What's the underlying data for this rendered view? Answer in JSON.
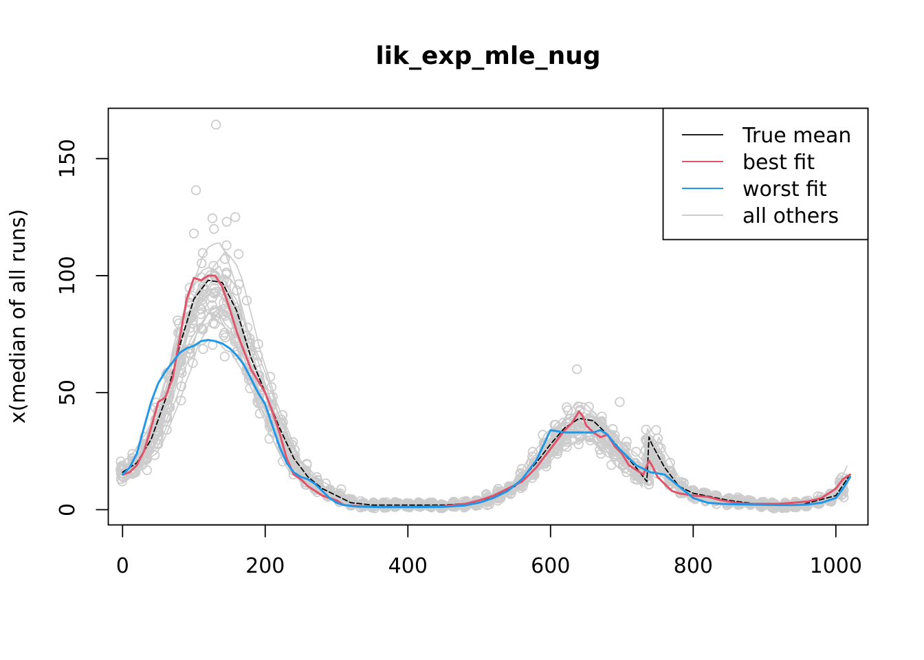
{
  "chart_data": {
    "type": "line",
    "title": "lik_exp_mle_nug",
    "xlabel": "",
    "ylabel": "x(median of all runs)",
    "xlim": [
      -20,
      1045
    ],
    "ylim": [
      -6.5,
      171.5
    ],
    "x_ticks": [
      0,
      200,
      400,
      600,
      800,
      1000
    ],
    "y_ticks": [
      0,
      50,
      100,
      150
    ],
    "legend": {
      "position": "top-right",
      "entries": [
        {
          "label": "True mean",
          "color": "#000000"
        },
        {
          "label": "best fit",
          "color": "#DF536B"
        },
        {
          "label": "worst fit",
          "color": "#2297E6"
        },
        {
          "label": "all others",
          "color": "#CCCCCC"
        }
      ]
    },
    "series": [
      {
        "name": "True mean",
        "color": "#000000",
        "style": "dashed",
        "x": [
          0,
          20,
          40,
          60,
          80,
          100,
          120,
          140,
          160,
          180,
          200,
          220,
          240,
          260,
          280,
          300,
          320,
          350,
          400,
          450,
          500,
          550,
          580,
          600,
          620,
          640,
          660,
          680,
          700,
          720,
          735,
          738,
          742,
          760,
          780,
          800,
          850,
          900,
          950,
          1000,
          1020
        ],
        "y": [
          16,
          20,
          30,
          47,
          70,
          90,
          98,
          97,
          85,
          65,
          50,
          35,
          22,
          14,
          9,
          6,
          3,
          2,
          2,
          2,
          3,
          10,
          20,
          28,
          35,
          39,
          38,
          32,
          25,
          18,
          12,
          31,
          28,
          18,
          10,
          7,
          4,
          2,
          2,
          6,
          15
        ]
      },
      {
        "name": "best fit",
        "color": "#DF536B",
        "style": "solid",
        "x": [
          0,
          10,
          20,
          30,
          40,
          50,
          60,
          70,
          80,
          90,
          100,
          110,
          120,
          130,
          140,
          150,
          160,
          170,
          180,
          190,
          200,
          210,
          220,
          230,
          240,
          250,
          260,
          270,
          280,
          290,
          300,
          310,
          330,
          360,
          400,
          450,
          480,
          500,
          520,
          540,
          560,
          580,
          600,
          610,
          620,
          630,
          640,
          645,
          650,
          660,
          670,
          680,
          690,
          700,
          710,
          720,
          730,
          738,
          742,
          750,
          760,
          770,
          780,
          790,
          800,
          820,
          840,
          860,
          880,
          900,
          920,
          940,
          960,
          980,
          1000,
          1010,
          1020
        ],
        "y": [
          15,
          16,
          19,
          25,
          35,
          46,
          48,
          56,
          73,
          90,
          99,
          98,
          100,
          100,
          95,
          86,
          76,
          68,
          60,
          55,
          50,
          42,
          33,
          22,
          15,
          13,
          10,
          8,
          6,
          5,
          4,
          2,
          1.5,
          1.2,
          1.2,
          1.5,
          2.5,
          4,
          6,
          9,
          12,
          18,
          26,
          30,
          34,
          37,
          42,
          40,
          36,
          33,
          31,
          32,
          27,
          24,
          19,
          17,
          15,
          21,
          19,
          14,
          11,
          8,
          7,
          6.5,
          6,
          5.5,
          4,
          3,
          2.5,
          2.5,
          2.5,
          3,
          3.5,
          5,
          9,
          13,
          15
        ]
      },
      {
        "name": "worst fit",
        "color": "#2297E6",
        "style": "solid",
        "x": [
          0,
          10,
          20,
          30,
          40,
          50,
          60,
          70,
          80,
          90,
          100,
          110,
          120,
          130,
          140,
          150,
          160,
          170,
          180,
          190,
          200,
          210,
          220,
          230,
          240,
          250,
          260,
          270,
          280,
          290,
          300,
          310,
          330,
          360,
          400,
          450,
          480,
          500,
          520,
          540,
          560,
          580,
          600,
          620,
          640,
          660,
          670,
          680,
          690,
          700,
          720,
          740,
          760,
          780,
          800,
          820,
          840,
          860,
          880,
          900,
          920,
          940,
          960,
          980,
          1000,
          1010,
          1020
        ],
        "y": [
          15,
          18,
          24,
          35,
          46,
          54,
          59,
          63,
          67,
          69,
          70,
          72,
          72.5,
          72,
          71,
          69,
          66,
          62,
          56,
          50,
          45,
          36,
          27,
          20,
          16,
          14,
          13,
          11,
          8,
          5,
          3,
          2,
          1.3,
          1.1,
          1.1,
          1.2,
          1.8,
          3,
          5,
          8,
          13,
          21,
          34,
          33,
          33,
          33,
          34,
          32,
          28,
          25,
          19,
          16,
          15,
          10,
          5,
          3,
          2.5,
          2.3,
          2.2,
          2.1,
          2,
          2,
          2.2,
          3,
          5,
          9,
          14
        ]
      }
    ],
    "others_summary": {
      "name": "all others",
      "color": "#CCCCCC",
      "marker": "open circle",
      "n_runs": 18,
      "x_range": [
        0,
        1023
      ],
      "outliers": [
        {
          "x": 131,
          "y": 164.5
        },
        {
          "x": 103,
          "y": 136.5
        },
        {
          "x": 126,
          "y": 124.5
        },
        {
          "x": 158,
          "y": 125
        },
        {
          "x": 146,
          "y": 123
        },
        {
          "x": 100,
          "y": 118
        },
        {
          "x": 637,
          "y": 60
        },
        {
          "x": 748,
          "y": 34
        },
        {
          "x": 697,
          "y": 46
        }
      ]
    }
  }
}
